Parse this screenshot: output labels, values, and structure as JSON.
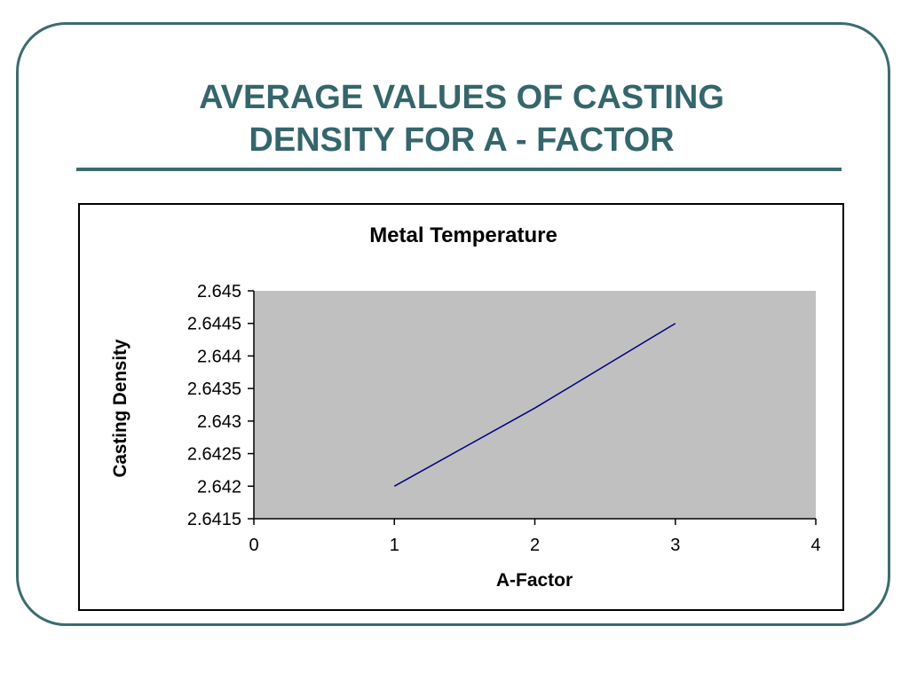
{
  "slide": {
    "title_line1": "AVERAGE VALUES OF CASTING",
    "title_line2": "DENSITY FOR A - FACTOR"
  },
  "colors": {
    "frame": "#3d6b6f",
    "title": "#34666b",
    "plot_area": "#c0c0c0",
    "series_line": "#000080"
  },
  "chart_data": {
    "type": "line",
    "title": "Metal Temperature",
    "xlabel": "A-Factor",
    "ylabel": "Casting Density",
    "xlim": [
      0,
      4
    ],
    "ylim": [
      2.6415,
      2.645
    ],
    "x_ticks": [
      "0",
      "1",
      "2",
      "3",
      "4"
    ],
    "y_ticks": [
      "2.645",
      "2.6445",
      "2.644",
      "2.6435",
      "2.643",
      "2.6425",
      "2.642",
      "2.6415"
    ],
    "grid": false,
    "legend": "none",
    "series": [
      {
        "x": [
          1,
          2,
          3
        ],
        "y": [
          2.642,
          2.6432,
          2.6445
        ]
      }
    ]
  }
}
